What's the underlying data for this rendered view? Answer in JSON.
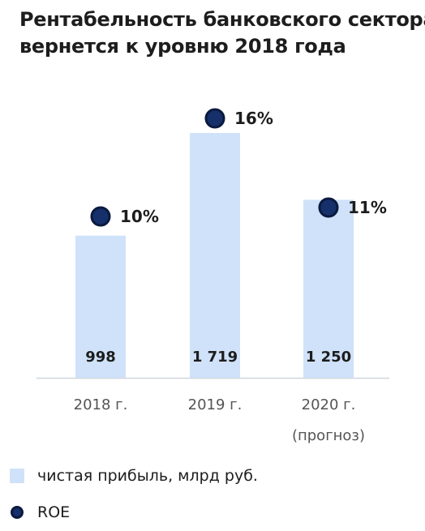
{
  "title": {
    "line1": "Рентабельность банковского сектора",
    "line2": "вернется к уровню 2018 года"
  },
  "legend": {
    "profit_label": "чистая прибыль, млрд руб.",
    "roe_label": "ROE"
  },
  "colors": {
    "bar": "#cfe2f9",
    "marker": "#16306b",
    "marker_border": "#0b1a3f",
    "axis": "#cfd6df",
    "text": "#1d1d1d",
    "tick": "#555555"
  },
  "chart_data": {
    "type": "bar",
    "categories": [
      "2018 г.",
      "2019 г.",
      "2020 г."
    ],
    "category_notes": [
      "",
      "",
      "(прогноз)"
    ],
    "series": [
      {
        "name": "чистая прибыль, млрд руб.",
        "values": [
          998,
          1719,
          1250
        ],
        "labels": [
          "998",
          "1 719",
          "1 250"
        ]
      },
      {
        "name": "ROE",
        "values": [
          10,
          16,
          11
        ],
        "labels": [
          "10%",
          "16%",
          "11%"
        ],
        "unit": "%"
      }
    ],
    "ylim": [
      0,
      1719
    ]
  }
}
